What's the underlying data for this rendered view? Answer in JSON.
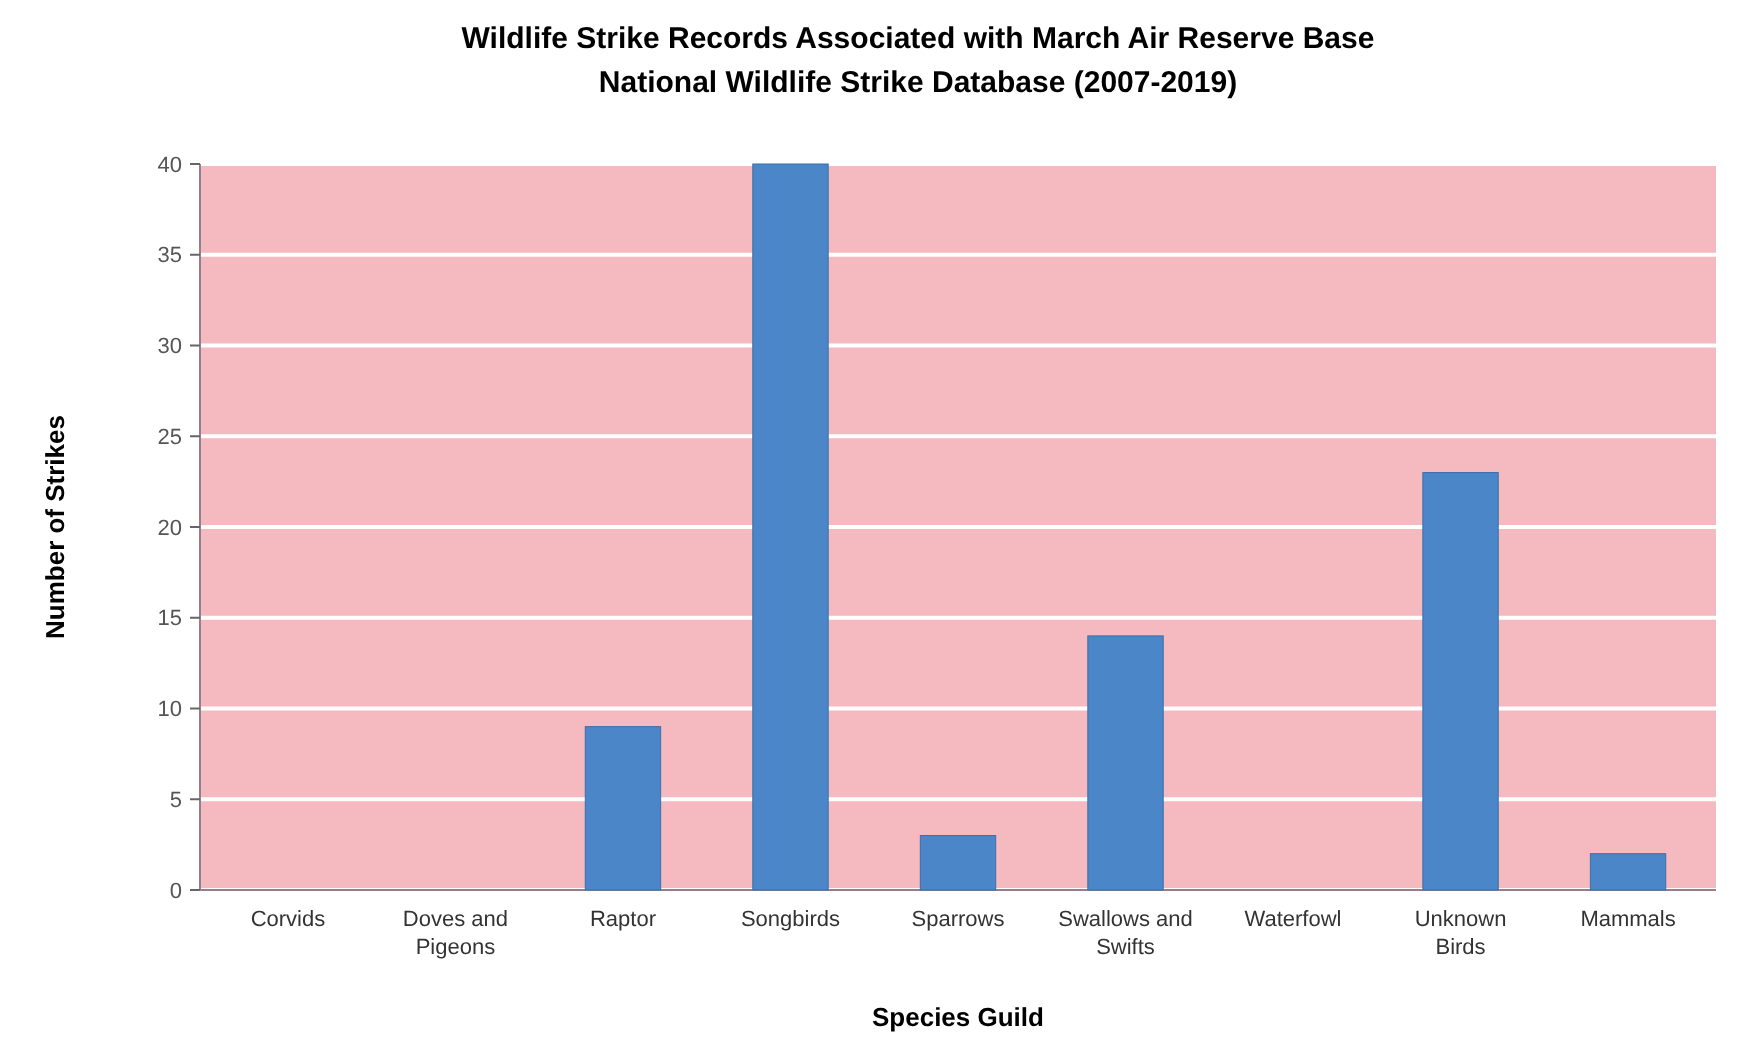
{
  "chart_data": {
    "type": "bar",
    "title": "Wildlife Strike Records Associated with March Air Reserve Base",
    "subtitle": "National Wildlife Strike Database (2007-2019)",
    "xlabel": "Species Guild",
    "ylabel": "Number of Strikes",
    "categories": [
      "Corvids",
      "Doves and Pigeons",
      "Raptor",
      "Songbirds",
      "Sparrows",
      "Swallows and Swifts",
      "Waterfowl",
      "Unknown Birds",
      "Mammals"
    ],
    "values": [
      0,
      0,
      9,
      40,
      3,
      14,
      0,
      23,
      2
    ],
    "color": "#4a86c8",
    "ylim": [
      0,
      40
    ],
    "yticks": [
      0,
      5,
      10,
      15,
      20,
      25,
      30,
      35,
      40
    ],
    "grid": "y"
  }
}
